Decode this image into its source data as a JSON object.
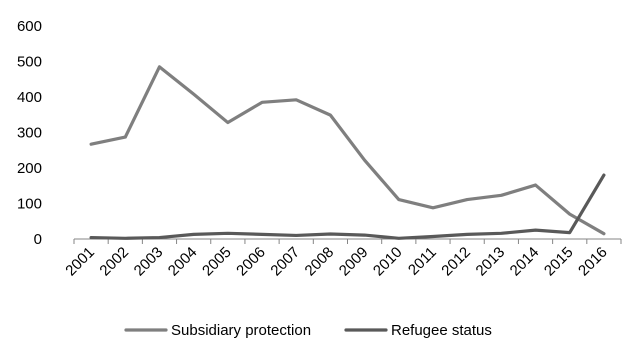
{
  "chart_data": {
    "type": "line",
    "title": "",
    "xlabel": "",
    "ylabel": "",
    "categories": [
      "2001",
      "2002",
      "2003",
      "2004",
      "2005",
      "2006",
      "2007",
      "2008",
      "2009",
      "2010",
      "2011",
      "2012",
      "2013",
      "2014",
      "2015",
      "2016"
    ],
    "ylim": [
      0,
      600
    ],
    "yticks": [
      0,
      100,
      200,
      300,
      400,
      500,
      600
    ],
    "grid": false,
    "legend_position": "bottom",
    "series": [
      {
        "name": "Subsidiary protection",
        "color": "#7f7f7f",
        "values": [
          267,
          287,
          485,
          408,
          328,
          385,
          392,
          349,
          222,
          111,
          88,
          111,
          123,
          152,
          70,
          15
        ]
      },
      {
        "name": "Refugee status",
        "color": "#595959",
        "values": [
          4,
          2,
          4,
          13,
          16,
          13,
          10,
          14,
          11,
          2,
          7,
          13,
          16,
          25,
          18,
          180
        ]
      }
    ]
  }
}
